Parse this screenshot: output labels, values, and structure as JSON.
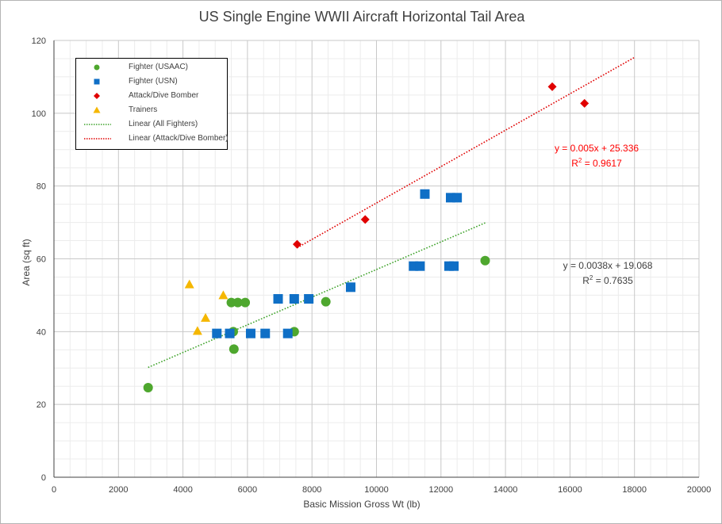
{
  "chart_data": {
    "type": "scatter",
    "title": "US Single Engine WWII Aircraft Horizontal Tail Area",
    "xlabel": "Basic Mission Gross Wt (lb)",
    "ylabel": "Area (sq ft)",
    "xlim": [
      0,
      20000
    ],
    "ylim": [
      0,
      120
    ],
    "x_ticks": [
      0,
      2000,
      4000,
      6000,
      8000,
      10000,
      12000,
      14000,
      16000,
      18000,
      20000
    ],
    "y_ticks": [
      0,
      20,
      40,
      60,
      80,
      100,
      120
    ],
    "grid": true,
    "legend_position": "top-left",
    "series": [
      {
        "name": "Fighter (USAAC)",
        "marker": "circle",
        "color": "#4ea72e",
        "points": [
          [
            2920,
            24.6
          ],
          [
            5500,
            48
          ],
          [
            5560,
            40
          ],
          [
            5580,
            35.2
          ],
          [
            5700,
            48
          ],
          [
            5930,
            48
          ],
          [
            7450,
            40
          ],
          [
            8430,
            48.2
          ],
          [
            13370,
            59.5
          ]
        ]
      },
      {
        "name": "Fighter (USN)",
        "marker": "square",
        "color": "#0f6fc6",
        "points": [
          [
            5050,
            39.5
          ],
          [
            5450,
            39.5
          ],
          [
            6100,
            39.5
          ],
          [
            6550,
            39.5
          ],
          [
            6950,
            49
          ],
          [
            7250,
            39.5
          ],
          [
            7450,
            49
          ],
          [
            7900,
            49
          ],
          [
            9200,
            52.2
          ],
          [
            11150,
            58
          ],
          [
            11350,
            58
          ],
          [
            11500,
            77.8
          ],
          [
            12250,
            58
          ],
          [
            12400,
            58
          ],
          [
            12300,
            76.8
          ],
          [
            12500,
            76.8
          ]
        ]
      },
      {
        "name": "Attack/Dive Bomber",
        "marker": "diamond",
        "color": "#e00000",
        "points": [
          [
            7540,
            64
          ],
          [
            9650,
            70.8
          ],
          [
            15450,
            107.3
          ],
          [
            16450,
            102.7
          ]
        ]
      },
      {
        "name": "Trainers",
        "marker": "triangle",
        "color": "#f5b700",
        "points": [
          [
            4200,
            53
          ],
          [
            4450,
            40.2
          ],
          [
            4700,
            43.8
          ],
          [
            5250,
            50
          ]
        ]
      }
    ],
    "trendlines": [
      {
        "name": "Linear (All Fighters)",
        "color": "#3fa32b",
        "slope": 0.0038,
        "intercept": 19.068,
        "x_range": [
          2920,
          13370
        ]
      },
      {
        "name": "Linear (Attack/Dive Bomber)",
        "color": "#e00000",
        "slope": 0.005,
        "intercept": 25.336,
        "x_range": [
          7540,
          18000
        ]
      }
    ],
    "legend": [
      "Fighter (USAAC)",
      "Fighter (USN)",
      "Attack/Dive Bomber",
      "Trainers",
      "Linear (All Fighters)",
      "Linear (Attack/Dive Bomber)"
    ],
    "annotations": {
      "red_equation": "y = 0.005x + 25.336",
      "red_r2_prefix": "R",
      "red_r2_value": " = 0.9617",
      "gray_equation": "y = 0.0038x + 19.068",
      "gray_r2_prefix": "R",
      "gray_r2_value": " = 0.7635",
      "superscript": "2"
    }
  }
}
